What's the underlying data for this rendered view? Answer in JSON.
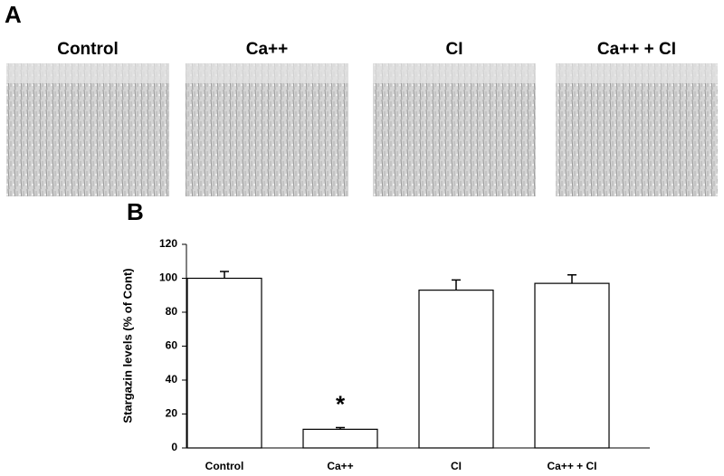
{
  "panel_a": {
    "label": "A",
    "images": [
      {
        "title": "Control"
      },
      {
        "title": "Ca++"
      },
      {
        "title": "CI"
      },
      {
        "title": "Ca++ + CI"
      }
    ]
  },
  "chart_data": {
    "type": "bar",
    "panel_label": "B",
    "y_label": "Stargazin levels (% of Cont)",
    "categories": [
      "Control",
      "Ca++",
      "CI",
      "Ca++ + CI"
    ],
    "values": [
      100,
      11,
      93,
      97
    ],
    "errors": [
      4,
      1,
      6,
      5
    ],
    "color": "#ffffff",
    "ylim": [
      0,
      120
    ],
    "yticks": [
      0,
      20,
      40,
      60,
      80,
      100,
      120
    ],
    "annotations": [
      {
        "text": "*",
        "x": "Ca++"
      }
    ]
  }
}
